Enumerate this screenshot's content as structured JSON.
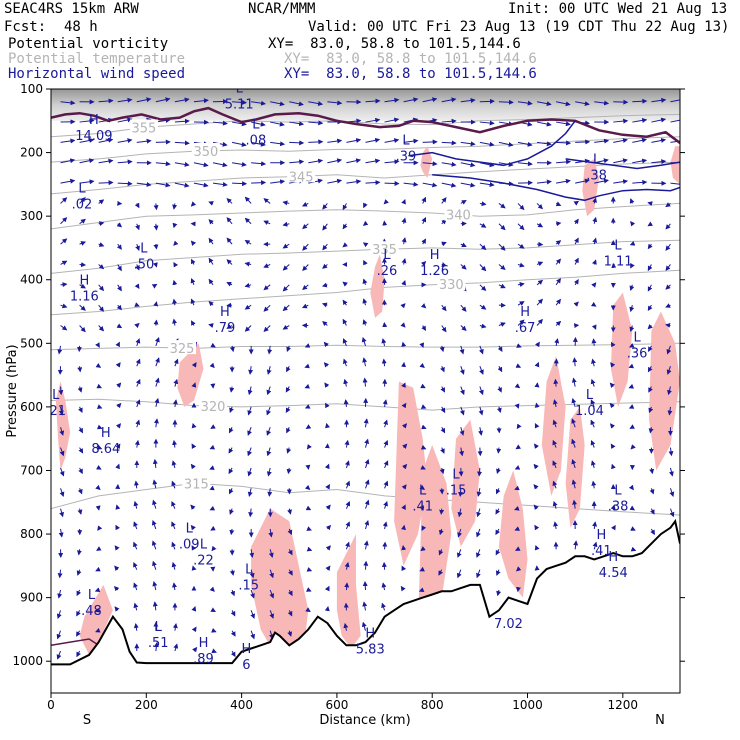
{
  "header": {
    "model": "SEAC4RS 15km ARW",
    "center": "NCAR/MMM",
    "init": "Init: 00 UTC Wed 21 Aug 13",
    "fcst_label": "Fcst:",
    "fcst_value": "48 h",
    "valid": "Valid: 00 UTC Fri 23 Aug 13 (19 CDT Thu 22 Aug 13)",
    "fields": [
      {
        "name": "Potential vorticity",
        "xy": "XY=  83.0, 58.8 to 101.5,144.6",
        "color": "#000000"
      },
      {
        "name": "Potential temperature",
        "xy": "XY=  83.0, 58.8 to 101.5,144.6",
        "color": "#b4b4b4"
      },
      {
        "name": "Horizontal wind speed",
        "xy": "XY=  83.0, 58.8 to 101.5,144.6",
        "color": "#1a1a9a"
      }
    ]
  },
  "chart_data": {
    "type": "cross-section",
    "xlabel": "Distance (km)",
    "ylabel": "Pressure (hPa)",
    "xlim": [
      0,
      1320
    ],
    "ylim": [
      1050,
      100
    ],
    "x_ticks": [
      0,
      200,
      400,
      600,
      800,
      1000,
      1200
    ],
    "y_ticks": [
      100,
      200,
      300,
      400,
      500,
      600,
      700,
      800,
      900,
      1000
    ],
    "end_labels": {
      "left": "S",
      "right": "N"
    },
    "colors": {
      "pv_shade": "#f9b8b8",
      "theta": "#b4b4b4",
      "wind": "#1a1a9a",
      "terrain": "#000000",
      "pv_contour": "#5a1a4a"
    },
    "theta_contours": [
      {
        "label": "315",
        "x": [
          0,
          100,
          200,
          300,
          400,
          500,
          600,
          700,
          800,
          900,
          1000,
          1100,
          1200,
          1320
        ],
        "p": [
          760,
          740,
          730,
          720,
          725,
          735,
          730,
          740,
          745,
          750,
          755,
          760,
          765,
          770
        ],
        "label_x": 305
      },
      {
        "label": "320",
        "x": [
          0,
          100,
          200,
          300,
          400,
          500,
          600,
          700,
          800,
          900,
          1000,
          1100,
          1200,
          1320
        ],
        "p": [
          590,
          588,
          592,
          598,
          600,
          598,
          595,
          600,
          605,
          600,
          598,
          596,
          594,
          592
        ],
        "label_x": 340
      },
      {
        "label": "325",
        "x": [
          0,
          100,
          200,
          300,
          400,
          500,
          600,
          700,
          800,
          900,
          1000,
          1100,
          1200,
          1320
        ],
        "p": [
          510,
          508,
          506,
          508,
          505,
          505,
          503,
          505,
          506,
          506,
          504,
          503,
          502,
          500
        ],
        "label_x": 275
      },
      {
        "label": "330",
        "x": [
          0,
          100,
          200,
          300,
          400,
          500,
          600,
          700,
          800,
          900,
          1000,
          1100,
          1200,
          1320
        ],
        "p": [
          455,
          450,
          442,
          435,
          430,
          425,
          420,
          412,
          408,
          405,
          400,
          396,
          390,
          385
        ],
        "label_x": 840
      },
      {
        "label": "335",
        "x": [
          0,
          100,
          200,
          300,
          400,
          500,
          600,
          700,
          800,
          900,
          1000,
          1100,
          1200,
          1320
        ],
        "p": [
          390,
          382,
          370,
          365,
          360,
          358,
          355,
          352,
          350,
          352,
          350,
          345,
          340,
          338
        ],
        "label_x": 700
      },
      {
        "label": "340",
        "x": [
          0,
          100,
          200,
          300,
          400,
          500,
          600,
          700,
          800,
          900,
          1000,
          1100,
          1200,
          1320
        ],
        "p": [
          320,
          310,
          300,
          298,
          295,
          292,
          290,
          292,
          295,
          300,
          298,
          290,
          285,
          280
        ],
        "label_x": 855
      },
      {
        "label": "345",
        "x": [
          0,
          100,
          200,
          300,
          400,
          500,
          600,
          700,
          800,
          900,
          1000,
          1100,
          1200,
          1320
        ],
        "p": [
          265,
          258,
          250,
          245,
          240,
          238,
          235,
          240,
          235,
          230,
          226,
          222,
          218,
          215
        ],
        "label_x": 525
      },
      {
        "label": "350",
        "x": [
          0,
          100,
          200,
          300,
          400,
          500,
          600,
          700,
          800,
          900,
          1000,
          1100,
          1200,
          1320
        ],
        "p": [
          215,
          210,
          202,
          198,
          196,
          198,
          195,
          195,
          192,
          190,
          186,
          182,
          178,
          175
        ],
        "label_x": 325
      },
      {
        "label": "355",
        "x": [
          0,
          100,
          200,
          300,
          400,
          500,
          600,
          700,
          800,
          900,
          1000,
          1100,
          1200,
          1320
        ],
        "p": [
          175,
          170,
          160,
          155,
          150,
          152,
          150,
          155,
          156,
          150,
          148,
          145,
          142,
          140
        ],
        "label_x": 195
      }
    ],
    "pv_shaded": [
      {
        "x": [
          20,
          30,
          40,
          30,
          20,
          15,
          10
        ],
        "p": [
          560,
          590,
          640,
          680,
          700,
          650,
          590
        ]
      },
      {
        "x": [
          70,
          110,
          130,
          100,
          80,
          60
        ],
        "p": [
          930,
          880,
          920,
          970,
          990,
          960
        ]
      },
      {
        "x": [
          270,
          310,
          320,
          300,
          280,
          265
        ],
        "p": [
          530,
          500,
          540,
          590,
          600,
          570
        ]
      },
      {
        "x": [
          420,
          460,
          500,
          520,
          540,
          530,
          500,
          470,
          440,
          420
        ],
        "p": [
          820,
          760,
          780,
          850,
          920,
          980,
          1000,
          990,
          950,
          880
        ]
      },
      {
        "x": [
          600,
          640,
          640,
          650,
          630,
          610,
          600
        ],
        "p": [
          860,
          800,
          880,
          960,
          980,
          960,
          920
        ]
      },
      {
        "x": [
          680,
          690,
          700,
          695,
          680,
          670
        ],
        "p": [
          380,
          360,
          400,
          450,
          460,
          420
        ]
      },
      {
        "x": [
          730,
          760,
          780,
          790,
          770,
          740,
          720
        ],
        "p": [
          560,
          570,
          650,
          720,
          800,
          850,
          780
        ]
      },
      {
        "x": [
          780,
          800,
          830,
          840,
          820,
          790,
          770
        ],
        "p": [
          700,
          660,
          720,
          800,
          900,
          980,
          950
        ]
      },
      {
        "x": [
          850,
          880,
          900,
          890,
          860,
          840
        ],
        "p": [
          650,
          620,
          700,
          780,
          820,
          760
        ]
      },
      {
        "x": [
          950,
          970,
          990,
          1000,
          990,
          960,
          940
        ],
        "p": [
          740,
          700,
          760,
          840,
          900,
          870,
          820
        ]
      },
      {
        "x": [
          1040,
          1060,
          1080,
          1070,
          1050,
          1030
        ],
        "p": [
          560,
          520,
          600,
          700,
          740,
          660
        ]
      },
      {
        "x": [
          1090,
          1110,
          1120,
          1110,
          1090,
          1080
        ],
        "p": [
          620,
          600,
          660,
          760,
          790,
          720
        ]
      },
      {
        "x": [
          1180,
          1200,
          1220,
          1210,
          1190,
          1175
        ],
        "p": [
          440,
          420,
          480,
          560,
          600,
          540
        ]
      },
      {
        "x": [
          1260,
          1280,
          1310,
          1320,
          1300,
          1270,
          1255
        ],
        "p": [
          480,
          450,
          500,
          560,
          660,
          700,
          620
        ]
      },
      {
        "x": [
          1120,
          1140,
          1150,
          1140,
          1125,
          1115
        ],
        "p": [
          220,
          210,
          240,
          290,
          300,
          260
        ]
      },
      {
        "x": [
          780,
          790,
          800,
          790,
          780,
          775
        ],
        "p": [
          200,
          190,
          210,
          240,
          230,
          220
        ]
      },
      {
        "x": [
          1310,
          1320,
          1320,
          1305,
          1300
        ],
        "p": [
          190,
          190,
          250,
          240,
          215
        ]
      }
    ],
    "pv_contours": [
      {
        "x": [
          0,
          30,
          60,
          90,
          120,
          150,
          190,
          230,
          270,
          300,
          330,
          360,
          400,
          430,
          470,
          520,
          560,
          600,
          640,
          690,
          730,
          760,
          800,
          850,
          900,
          950,
          1000,
          1050,
          1100,
          1150,
          1200,
          1250,
          1290,
          1320
        ],
        "p": [
          145,
          140,
          138,
          142,
          150,
          145,
          140,
          148,
          145,
          135,
          130,
          140,
          152,
          148,
          140,
          138,
          142,
          150,
          155,
          160,
          158,
          150,
          152,
          160,
          168,
          158,
          150,
          148,
          150,
          165,
          172,
          175,
          168,
          185
        ]
      },
      {
        "x": [
          750,
          800,
          850,
          900,
          950,
          1000,
          1050,
          1080,
          1100
        ],
        "p": [
          205,
          200,
          210,
          215,
          220,
          210,
          190,
          170,
          150
        ]
      },
      {
        "x": [
          800,
          880,
          950,
          1020,
          1080,
          1120,
          1150,
          1200,
          1250,
          1300,
          1320
        ],
        "p": [
          235,
          240,
          248,
          258,
          270,
          275,
          268,
          260,
          258,
          260,
          255
        ]
      },
      {
        "x": [
          1080,
          1130,
          1180,
          1230,
          1280,
          1320
        ],
        "p": [
          210,
          215,
          220,
          225,
          220,
          215
        ]
      },
      {
        "x": [
          0,
          40,
          80,
          100,
          140,
          160
        ],
        "p": [
          975,
          970,
          965,
          975,
          978,
          980
        ]
      }
    ],
    "terrain": {
      "x": [
        0,
        40,
        80,
        100,
        130,
        150,
        165,
        180,
        200,
        230,
        260,
        290,
        320,
        350,
        380,
        400,
        420,
        440,
        460,
        470,
        480,
        500,
        520,
        540,
        560,
        580,
        600,
        620,
        640,
        660,
        680,
        700,
        720,
        740,
        760,
        780,
        800,
        820,
        840,
        860,
        880,
        900,
        920,
        940,
        960,
        980,
        1000,
        1020,
        1040,
        1060,
        1080,
        1100,
        1120,
        1140,
        1160,
        1180,
        1200,
        1220,
        1240,
        1260,
        1280,
        1300,
        1310,
        1320
      ],
      "p": [
        1005,
        1005,
        990,
        970,
        930,
        950,
        985,
        1002,
        1003,
        1003,
        1003,
        1003,
        1003,
        1003,
        1003,
        985,
        980,
        975,
        970,
        955,
        960,
        975,
        965,
        950,
        930,
        940,
        960,
        975,
        975,
        970,
        955,
        930,
        920,
        910,
        905,
        900,
        895,
        890,
        890,
        885,
        880,
        880,
        930,
        920,
        900,
        905,
        910,
        870,
        855,
        850,
        845,
        835,
        835,
        840,
        835,
        830,
        835,
        835,
        830,
        815,
        800,
        790,
        780,
        815
      ]
    },
    "hl_labels": [
      {
        "letter": "H",
        "value": "14.09",
        "x": 90,
        "p": 168
      },
      {
        "letter": "L",
        "value": "5.11",
        "x": 395,
        "p": 118
      },
      {
        "letter": "L",
        "value": ".08",
        "x": 430,
        "p": 175
      },
      {
        "letter": "L",
        "value": ".39",
        "x": 745,
        "p": 200
      },
      {
        "letter": "L",
        "value": ".38",
        "x": 1145,
        "p": 230
      },
      {
        "letter": "L",
        "value": ".02",
        "x": 65,
        "p": 275
      },
      {
        "letter": "L",
        "value": ".50",
        "x": 195,
        "p": 370
      },
      {
        "letter": "L",
        "value": ".26",
        "x": 705,
        "p": 380
      },
      {
        "letter": "H",
        "value": "1.26",
        "x": 805,
        "p": 380
      },
      {
        "letter": "L",
        "value": "1.11",
        "x": 1190,
        "p": 365
      },
      {
        "letter": "H",
        "value": "1.16",
        "x": 70,
        "p": 420
      },
      {
        "letter": "H",
        "value": ".79",
        "x": 365,
        "p": 470
      },
      {
        "letter": "H",
        "value": ".67",
        "x": 995,
        "p": 470
      },
      {
        "letter": "L",
        "value": ".36",
        "x": 1230,
        "p": 510
      },
      {
        "letter": "L",
        "value": "1.04",
        "x": 1130,
        "p": 600
      },
      {
        "letter": "L",
        "value": ".21",
        "x": 10,
        "p": 600
      },
      {
        "letter": "H",
        "value": "8.64",
        "x": 115,
        "p": 660
      },
      {
        "letter": "L",
        "value": ".15",
        "x": 850,
        "p": 725
      },
      {
        "letter": "L",
        "value": ".41",
        "x": 780,
        "p": 750
      },
      {
        "letter": "L",
        "value": ".38",
        "x": 1190,
        "p": 750
      },
      {
        "letter": "L",
        "value": ".09",
        "x": 290,
        "p": 810
      },
      {
        "letter": "H",
        "value": ".41",
        "x": 1155,
        "p": 820
      },
      {
        "letter": "L",
        "value": ".22",
        "x": 320,
        "p": 835
      },
      {
        "letter": "H",
        "value": "4.54",
        "x": 1180,
        "p": 855
      },
      {
        "letter": "L",
        "value": ".15",
        "x": 415,
        "p": 875
      },
      {
        "letter": "L",
        "value": ".48",
        "x": 85,
        "p": 915
      },
      {
        "letter": "",
        "value": "7.02",
        "x": 960,
        "p": 935
      },
      {
        "letter": "L",
        "value": ".51",
        "x": 225,
        "p": 965
      },
      {
        "letter": "H",
        "value": "5.83",
        "x": 670,
        "p": 975
      },
      {
        "letter": "H",
        "value": ".89",
        "x": 320,
        "p": 990
      },
      {
        "letter": "H",
        "value": "6",
        "x": 410,
        "p": 1000
      }
    ]
  }
}
